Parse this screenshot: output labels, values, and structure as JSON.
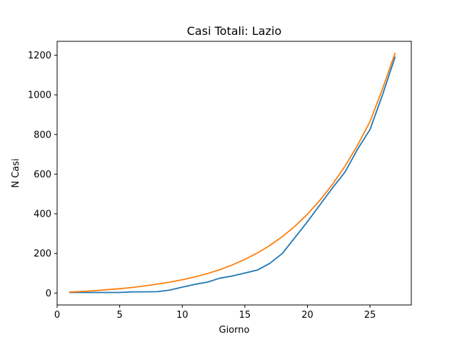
{
  "chart_data": {
    "type": "line",
    "title": "Casi Totali: Lazio",
    "xlabel": "Giorno",
    "ylabel": "N Casi",
    "xlim": [
      0,
      28.3
    ],
    "ylim": [
      -60,
      1270
    ],
    "xticks": [
      0,
      5,
      10,
      15,
      20,
      25
    ],
    "yticks": [
      0,
      200,
      400,
      600,
      800,
      1000,
      1200
    ],
    "grid": false,
    "legend": null,
    "series": [
      {
        "color": "#1f77b4",
        "x": [
          1,
          2,
          3,
          4,
          5,
          6,
          7,
          8,
          9,
          10,
          11,
          12,
          13,
          14,
          15,
          16,
          17,
          18,
          19,
          20,
          21,
          22,
          23,
          24,
          25,
          26,
          27
        ],
        "y": [
          3,
          3,
          3,
          3,
          3,
          6,
          6,
          7,
          15,
          30,
          44,
          55,
          75,
          86,
          101,
          116,
          150,
          200,
          280,
          360,
          445,
          530,
          610,
          725,
          825,
          1000,
          1190
        ]
      },
      {
        "color": "#ff7f0e",
        "x": [
          1,
          2,
          3,
          4,
          5,
          6,
          7,
          8,
          9,
          10,
          11,
          12,
          13,
          14,
          15,
          16,
          17,
          18,
          19,
          20,
          21,
          22,
          23,
          24,
          25,
          26,
          27
        ],
        "y": [
          5,
          8,
          12,
          17,
          22,
          28,
          36,
          45,
          55,
          67,
          81,
          98,
          118,
          142,
          170,
          202,
          240,
          285,
          337,
          398,
          468,
          548,
          640,
          745,
          865,
          1030,
          1210
        ]
      }
    ]
  }
}
